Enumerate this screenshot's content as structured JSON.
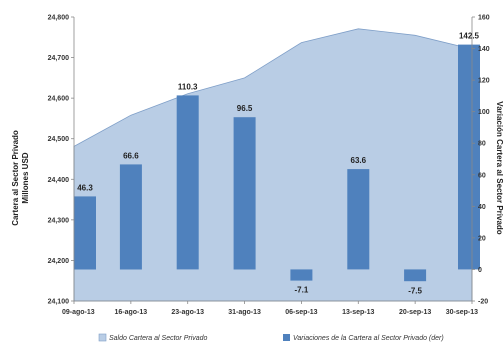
{
  "chart_data": {
    "type": "bar+area",
    "categories": [
      "09-ago-13",
      "16-ago-13",
      "23-ago-13",
      "31-ago-13",
      "06-sep-13",
      "13-sep-13",
      "20-sep-13",
      "30-sep-13"
    ],
    "ylabel_left": [
      "Cartera al Sector Privado",
      "Millones USD"
    ],
    "ylabel_right": "Variación Cartera al Sector Privado",
    "ylim_left": [
      24100,
      24800
    ],
    "yticks_left": [
      "24,100",
      "24,200",
      "24,300",
      "24,400",
      "24,500",
      "24,600",
      "24,700",
      "24,800"
    ],
    "ylim_right": [
      -20,
      160
    ],
    "yticks_right": [
      "-20",
      "0",
      "20",
      "40",
      "60",
      "80",
      "100",
      "120",
      "140",
      "160"
    ],
    "series": [
      {
        "name": "Saldo Cartera al Sector Privado",
        "type": "area",
        "axis": "left",
        "color": "#b9cde5",
        "values": [
          24481,
          24558,
          24611,
          24650,
          24737,
          24771,
          24755,
          24721
        ]
      },
      {
        "name": "Variaciones de la Cartera al Sector Privado (der)",
        "type": "bar",
        "axis": "right",
        "color": "#4f81bd",
        "values": [
          46.3,
          66.6,
          110.3,
          96.5,
          -7.1,
          63.6,
          -7.5,
          142.5
        ],
        "labels": [
          "46.3",
          "66.6",
          "110.3",
          "96.5",
          "-7.1",
          "63.6",
          "-7.5",
          "142.5"
        ]
      }
    ],
    "legend": "bottom",
    "grid": false
  }
}
